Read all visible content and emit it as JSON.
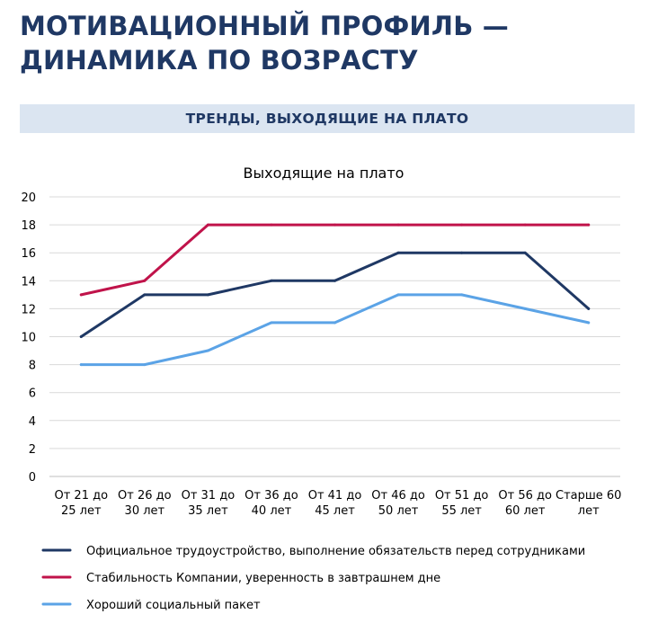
{
  "header": {
    "title_line1": "МОТИВАЦИОННЫЙ ПРОФИЛЬ —",
    "title_line2": "ДИНАМИКА ПО ВОЗРАСТУ",
    "section_label": "ТРЕНДЫ, ВЫХОДЯЩИЕ НА ПЛАТО"
  },
  "chart_data": {
    "type": "line",
    "title": "Выходящие на плато",
    "xlabel": "",
    "ylabel": "",
    "ylim": [
      0,
      20
    ],
    "yticks": [
      0,
      2,
      4,
      6,
      8,
      10,
      12,
      14,
      16,
      18,
      20
    ],
    "grid": true,
    "legend_position": "bottom",
    "categories": [
      [
        "От 21 до",
        "25 лет"
      ],
      [
        "От 26 до",
        "30 лет"
      ],
      [
        "От 31 до",
        "35 лет"
      ],
      [
        "От 36 до",
        "40 лет"
      ],
      [
        "От 41 до",
        "45 лет"
      ],
      [
        "От 46 до",
        "50 лет"
      ],
      [
        "От 51 до",
        "55 лет"
      ],
      [
        "От 56 до",
        "60 лет"
      ],
      [
        "Старше 60",
        "лет"
      ]
    ],
    "series": [
      {
        "name": "Официальное трудоустройство, выполнение обязательств перед сотрудниками",
        "color": "#1f3864",
        "values": [
          10,
          13,
          13,
          14,
          14,
          16,
          16,
          16,
          12
        ]
      },
      {
        "name": "Стабильность Компании, уверенность в завтрашнем дне",
        "color": "#c0134a",
        "values": [
          13,
          14,
          18,
          18,
          18,
          18,
          18,
          18,
          18
        ]
      },
      {
        "name": "Хороший социальный пакет",
        "color": "#5ba3e6",
        "values": [
          8,
          8,
          9,
          11,
          11,
          13,
          13,
          12,
          11
        ]
      }
    ]
  }
}
